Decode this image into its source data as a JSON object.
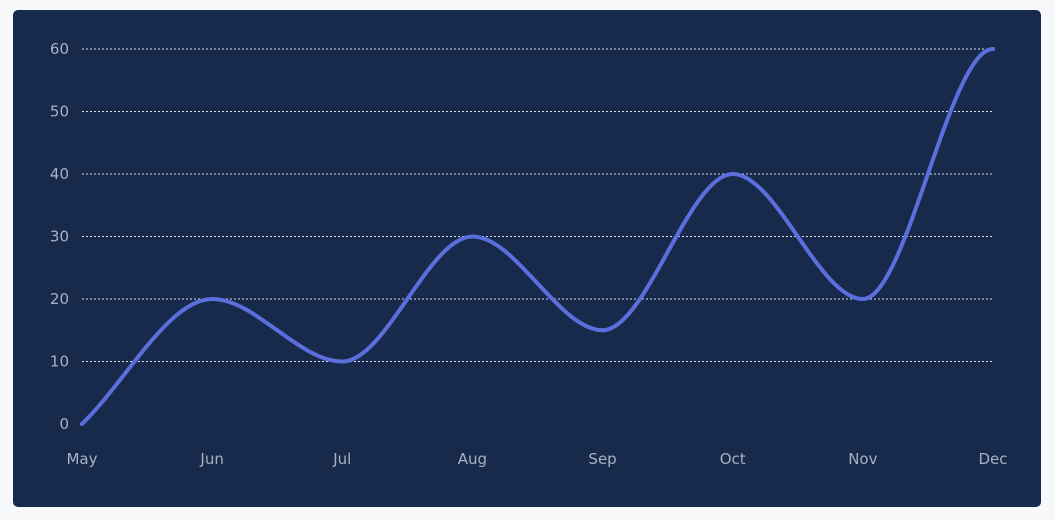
{
  "chart_data": {
    "type": "line",
    "title": "",
    "xlabel": "",
    "ylabel": "",
    "categories": [
      "May",
      "Jun",
      "Jul",
      "Aug",
      "Sep",
      "Oct",
      "Nov",
      "Dec"
    ],
    "series": [
      {
        "values": [
          0,
          20,
          10,
          30,
          15,
          40,
          20,
          60
        ]
      }
    ],
    "ylim": [
      0,
      60
    ],
    "yticks": [
      0,
      10,
      20,
      30,
      40,
      50,
      60
    ],
    "grid": true,
    "curve": "smooth",
    "colors": {
      "background": "#172a4c",
      "line": "#5b6fdc",
      "grid": "#ffffff",
      "tick_text": "#a8b1c2"
    }
  }
}
